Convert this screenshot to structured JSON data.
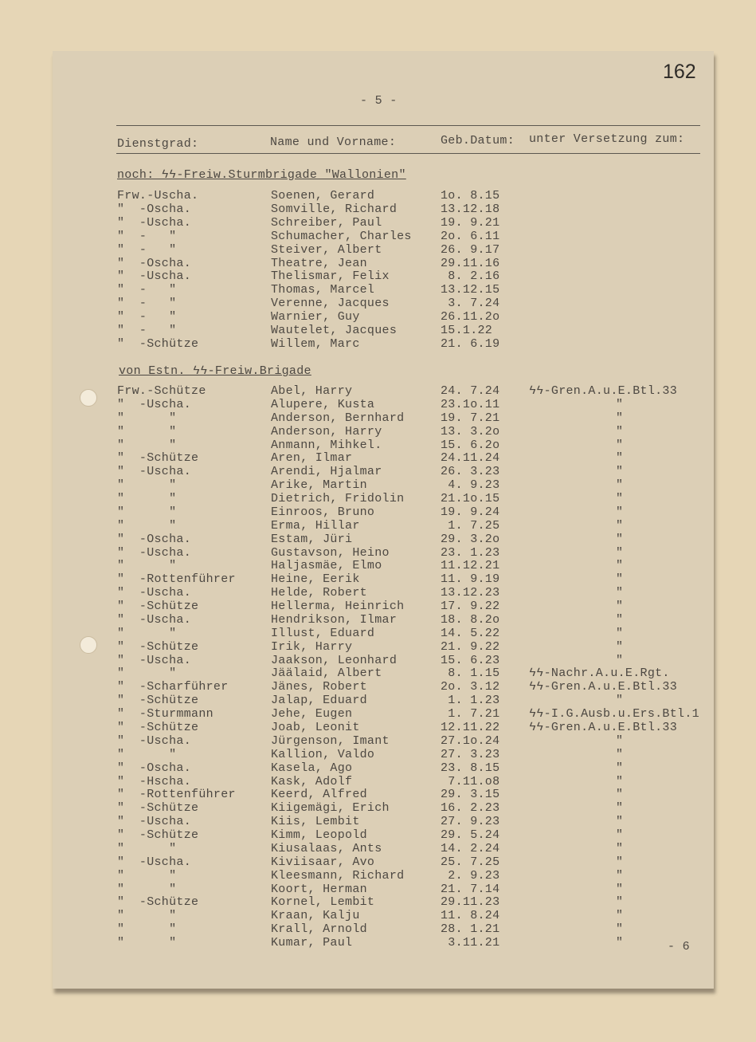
{
  "page_number": "162",
  "page_marker": "- 5 -",
  "next_page_marker": "- 6",
  "headers": {
    "rank": "Dienstgrad:",
    "name": "Name und Vorname:",
    "date": "Geb.Datum:",
    "unit": "unter Versetzung zum:"
  },
  "sections": [
    {
      "title": "noch: ϟϟ-Freiw.Sturmbrigade \"Wallonien\"",
      "rows": [
        [
          "Frw.-Uscha.",
          "Soenen, Gerard",
          "1o. 8.15",
          ""
        ],
        [
          "\"  -Oscha.",
          "Somville, Richard",
          "13.12.18",
          ""
        ],
        [
          "\"  -Uscha.",
          "Schreiber, Paul",
          "19. 9.21",
          ""
        ],
        [
          "\"  -   \"",
          "Schumacher, Charles",
          "2o. 6.11",
          ""
        ],
        [
          "\"  -   \"",
          "Steiver, Albert",
          "26. 9.17",
          ""
        ],
        [
          "\"  -Oscha.",
          "Theatre, Jean",
          "29.11.16",
          ""
        ],
        [
          "\"  -Uscha.",
          "Thelismar, Felix",
          " 8. 2.16",
          ""
        ],
        [
          "\"  -   \"",
          "Thomas, Marcel",
          "13.12.15",
          ""
        ],
        [
          "\"  -   \"",
          "Verenne, Jacques",
          " 3. 7.24",
          ""
        ],
        [
          "\"  -   \"",
          "Warnier, Guy",
          "26.11.2o",
          ""
        ],
        [
          "\"  -   \"",
          "Wautelet, Jacques",
          "15.1.22",
          ""
        ],
        [
          "\"  -Schütze",
          "Willem, Marc",
          "21. 6.19",
          ""
        ]
      ]
    },
    {
      "title": "von Estn. ϟϟ-Freiw.Brigade",
      "rows": [
        [
          "Frw.-Schütze",
          "Abel, Harry",
          "24. 7.24",
          "ϟϟ-Gren.A.u.E.Btl.33"
        ],
        [
          "\"  -Uscha.",
          "Alupere, Kusta",
          "23.1o.11",
          "\""
        ],
        [
          "\"      \"",
          "Anderson, Bernhard",
          "19. 7.21",
          "\""
        ],
        [
          "\"      \"",
          "Anderson, Harry",
          "13. 3.2o",
          "\""
        ],
        [
          "\"      \"",
          "Anmann, Mihkel.",
          "15. 6.2o",
          "\""
        ],
        [
          "\"  -Schütze",
          "Aren, Ilmar",
          "24.11.24",
          "\""
        ],
        [
          "\"  -Uscha.",
          "Arendi, Hjalmar",
          "26. 3.23",
          "\""
        ],
        [
          "\"      \"",
          "Arike, Martin",
          " 4. 9.23",
          "\""
        ],
        [
          "\"      \"",
          "Dietrich, Fridolin",
          "21.1o.15",
          "\""
        ],
        [
          "\"      \"",
          "Einroos, Bruno",
          "19. 9.24",
          "\""
        ],
        [
          "\"      \"",
          "Erma, Hillar",
          " 1. 7.25",
          "\""
        ],
        [
          "\"  -Oscha.",
          "Estam, Jüri",
          "29. 3.2o",
          "\""
        ],
        [
          "\"  -Uscha.",
          "Gustavson, Heino",
          "23. 1.23",
          "\""
        ],
        [
          "\"      \"",
          "Haljasmäe, Elmo",
          "11.12.21",
          "\""
        ],
        [
          "\"  -Rottenführer",
          "Heine, Eerik",
          "11. 9.19",
          "\""
        ],
        [
          "\"  -Uscha.",
          "Helde, Robert",
          "13.12.23",
          "\""
        ],
        [
          "\"  -Schütze",
          "Hellerma, Heinrich",
          "17. 9.22",
          "\""
        ],
        [
          "\"  -Uscha.",
          "Hendrikson, Ilmar",
          "18. 8.2o",
          "\""
        ],
        [
          "\"      \"",
          "Illust, Eduard",
          "14. 5.22",
          "\""
        ],
        [
          "\"  -Schütze",
          "Irik, Harry",
          "21. 9.22",
          "\""
        ],
        [
          "\"  -Uscha.",
          "Jaakson, Leonhard",
          "15. 6.23",
          "\""
        ],
        [
          "\"      \"",
          "Jäälaid, Albert",
          " 8. 1.15",
          "ϟϟ-Nachr.A.u.E.Rgt."
        ],
        [
          "\"  -Scharführer",
          "Jänes, Robert",
          "2o. 3.12",
          "ϟϟ-Gren.A.u.E.Btl.33"
        ],
        [
          "\"  -Schütze",
          "Jalap, Eduard",
          " 1. 1.23",
          "\""
        ],
        [
          "\"  -Sturmmann",
          "Jehe, Eugen",
          " 1. 7.21",
          "ϟϟ-I.G.Ausb.u.Ers.Btl.1"
        ],
        [
          "\"  -Schütze",
          "Joab, Leonit",
          "12.11.22",
          "ϟϟ-Gren.A.u.E.Btl.33"
        ],
        [
          "\"  -Uscha.",
          "Jürgenson, Imant",
          "27.1o.24",
          "\""
        ],
        [
          "\"      \"",
          "Kallion, Valdo",
          "27. 3.23",
          "\""
        ],
        [
          "\"  -Oscha.",
          "Kasela, Ago",
          "23. 8.15",
          "\""
        ],
        [
          "\"  -Hscha.",
          "Kask, Adolf",
          " 7.11.o8",
          "\""
        ],
        [
          "\"  -Rottenführer",
          "Keerd, Alfred",
          "29. 3.15",
          "\""
        ],
        [
          "\"  -Schütze",
          "Kiigemägi, Erich",
          "16. 2.23",
          "\""
        ],
        [
          "\"  -Uscha.",
          "Kiis, Lembit",
          "27. 9.23",
          "\""
        ],
        [
          "\"  -Schütze",
          "Kimm, Leopold",
          "29. 5.24",
          "\""
        ],
        [
          "\"      \"",
          "Kiusalaas, Ants",
          "14. 2.24",
          "\""
        ],
        [
          "\"  -Uscha.",
          "Kiviisaar, Avo",
          "25. 7.25",
          "\""
        ],
        [
          "\"      \"",
          "Kleesmann, Richard",
          " 2. 9.23",
          "\""
        ],
        [
          "\"      \"",
          "Koort, Herman",
          "21. 7.14",
          "\""
        ],
        [
          "\"  -Schütze",
          "Kornel, Lembit",
          "29.11.23",
          "\""
        ],
        [
          "\"      \"",
          "Kraan, Kalju",
          "11. 8.24",
          "\""
        ],
        [
          "\"      \"",
          "Krall, Arnold",
          "28. 1.21",
          "\""
        ],
        [
          "\"      \"",
          "Kumar, Paul",
          " 3.11.21",
          "\""
        ]
      ]
    }
  ]
}
